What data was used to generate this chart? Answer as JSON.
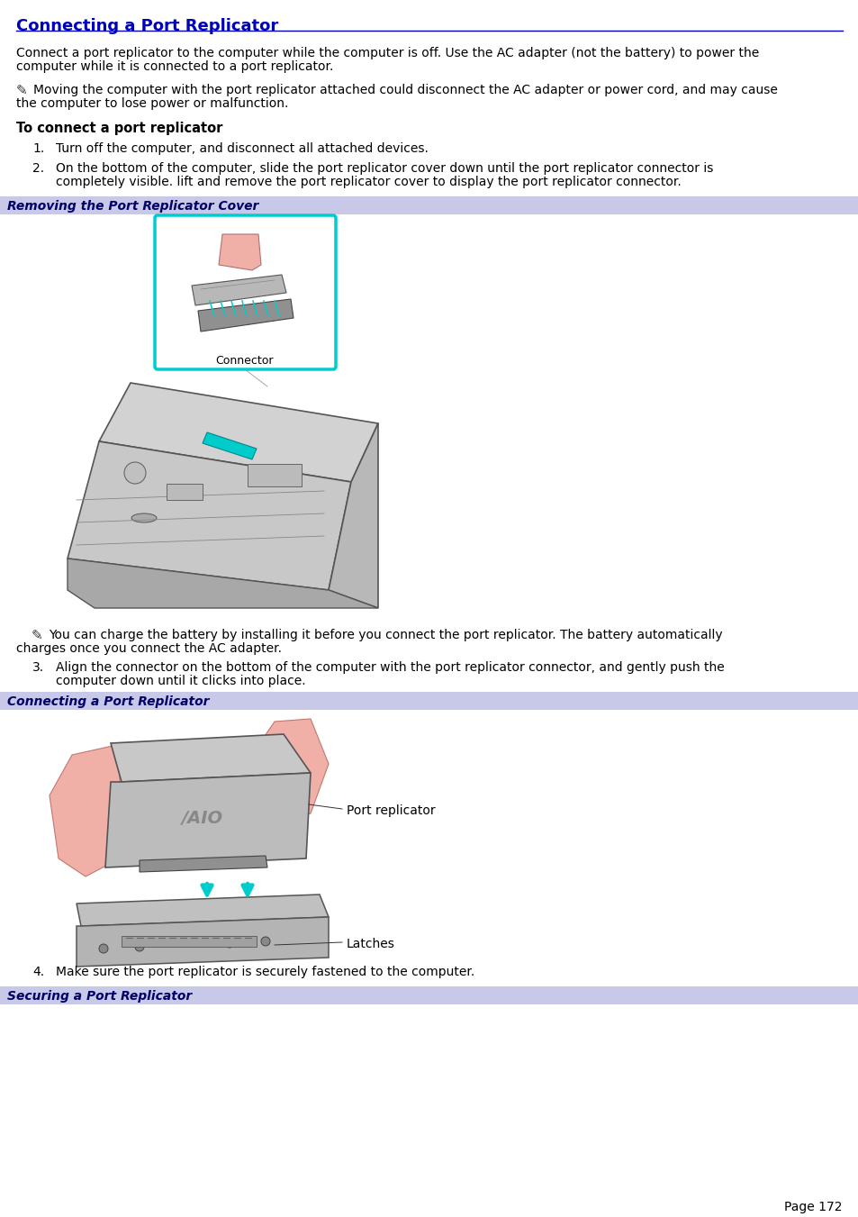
{
  "title": "Connecting a Port Replicator",
  "title_color": "#0000bb",
  "bg_color": "#ffffff",
  "header_bar_color": "#c8c8e8",
  "body_text_color": "#000000",
  "section_bar_labels": [
    "Removing the Port Replicator Cover",
    "Connecting a Port Replicator",
    "Securing a Port Replicator"
  ],
  "intro_line1": "Connect a port replicator to the computer while the computer is off. Use the AC adapter (not the battery) to power the",
  "intro_line2": "computer while it is connected to a port replicator.",
  "note1_line1": "Moving the computer with the port replicator attached could disconnect the AC adapter or power cord, and may cause",
  "note1_line2": "the computer to lose power or malfunction.",
  "section_header": "To connect a port replicator",
  "step1": "Turn off the computer, and disconnect all attached devices.",
  "step2_line1": "On the bottom of the computer, slide the port replicator cover down until the port replicator connector is",
  "step2_line2": "completely visible. lift and remove the port replicator cover to display the port replicator connector.",
  "note2_line1": "You can charge the battery by installing it before you connect the port replicator. The battery automatically",
  "note2_line2": "charges once you connect the AC adapter.",
  "step3_line1": "Align the connector on the bottom of the computer with the port replicator connector, and gently push the",
  "step3_line2": "computer down until it clicks into place.",
  "step4": "Make sure the port replicator is securely fastened to the computer.",
  "page_number": "Page 172",
  "connector_label": "Connector",
  "port_replicator_label": "Port replicator",
  "latches_label": "Latches",
  "cyan_color": "#00cccc",
  "pink_color": "#f0b0a8",
  "gray_light": "#d0d0d0",
  "gray_mid": "#b0b0b0",
  "gray_dark": "#808080",
  "line_color": "#444444"
}
